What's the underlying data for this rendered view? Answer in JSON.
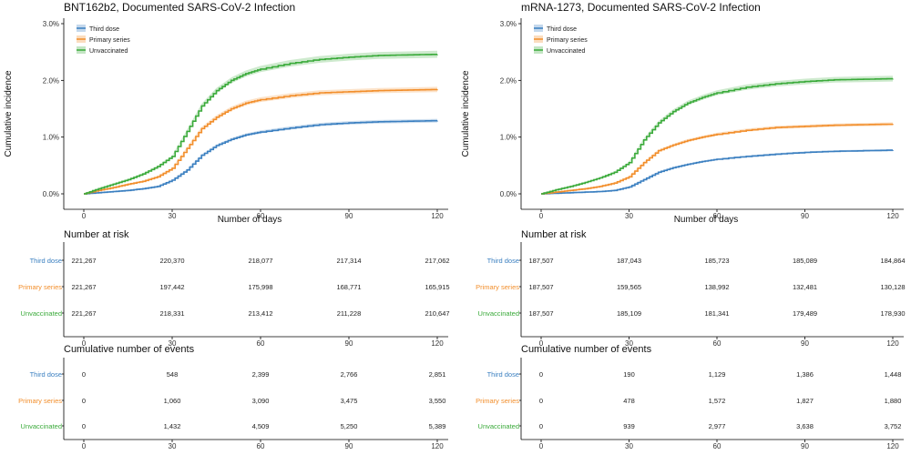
{
  "chart_data": [
    {
      "type": "line",
      "title": "BNT162b2, Documented SARS-CoV-2 Infection",
      "xlabel": "Number of days",
      "ylabel": "Cumulative incidence",
      "xlim": [
        0,
        120
      ],
      "ylim": [
        0,
        3.0
      ],
      "x_ticks": [
        0,
        30,
        60,
        90,
        120
      ],
      "x_tick_labels": [
        "0",
        "30",
        "60",
        "90",
        "120"
      ],
      "y_ticks": [
        0,
        1,
        2,
        3
      ],
      "y_tick_labels": [
        "0.0%",
        "1.0%",
        "2.0%",
        "3.0%"
      ],
      "legend_position": "top-left",
      "x": [
        0,
        5,
        10,
        15,
        20,
        25,
        30,
        35,
        40,
        45,
        50,
        55,
        60,
        70,
        80,
        90,
        100,
        110,
        120
      ],
      "series": [
        {
          "name": "Third dose",
          "color": "#3a7fc0",
          "values": [
            0,
            0.02,
            0.04,
            0.06,
            0.09,
            0.13,
            0.24,
            0.42,
            0.68,
            0.85,
            0.96,
            1.04,
            1.09,
            1.16,
            1.22,
            1.25,
            1.27,
            1.28,
            1.29
          ]
        },
        {
          "name": "Primary series",
          "color": "#f28e2b",
          "values": [
            0,
            0.06,
            0.11,
            0.17,
            0.22,
            0.3,
            0.45,
            0.8,
            1.15,
            1.35,
            1.5,
            1.6,
            1.66,
            1.73,
            1.78,
            1.8,
            1.82,
            1.83,
            1.84
          ]
        },
        {
          "name": "Unvaccinated",
          "color": "#3aaa3a",
          "values": [
            0,
            0.09,
            0.17,
            0.25,
            0.35,
            0.48,
            0.66,
            1.1,
            1.55,
            1.82,
            2.0,
            2.12,
            2.2,
            2.3,
            2.37,
            2.41,
            2.44,
            2.45,
            2.46
          ]
        }
      ],
      "number_at_risk": {
        "title": "Number at risk",
        "rows": [
          {
            "label": "Third dose",
            "color": "#3a7fc0",
            "values": [
              "221,267",
              "220,370",
              "218,077",
              "217,314",
              "217,062"
            ]
          },
          {
            "label": "Primary series",
            "color": "#f28e2b",
            "values": [
              "221,267",
              "197,442",
              "175,998",
              "168,771",
              "165,915"
            ]
          },
          {
            "label": "Unvaccinated",
            "color": "#3aaa3a",
            "values": [
              "221,267",
              "218,331",
              "213,412",
              "211,228",
              "210,647"
            ]
          }
        ]
      },
      "cumulative_events": {
        "title": "Cumulative number of events",
        "rows": [
          {
            "label": "Third dose",
            "color": "#3a7fc0",
            "values": [
              "0",
              "548",
              "2,399",
              "2,766",
              "2,851"
            ]
          },
          {
            "label": "Primary series",
            "color": "#f28e2b",
            "values": [
              "0",
              "1,060",
              "3,090",
              "3,475",
              "3,550"
            ]
          },
          {
            "label": "Unvaccinated",
            "color": "#3aaa3a",
            "values": [
              "0",
              "1,432",
              "4,509",
              "5,250",
              "5,389"
            ]
          }
        ]
      }
    },
    {
      "type": "line",
      "title": "mRNA-1273, Documented SARS-CoV-2 Infection",
      "xlabel": "Number of days",
      "ylabel": "Cumulative incidence",
      "xlim": [
        0,
        120
      ],
      "ylim": [
        0,
        3.0
      ],
      "x_ticks": [
        0,
        30,
        60,
        90,
        120
      ],
      "x_tick_labels": [
        "0",
        "30",
        "60",
        "90",
        "120"
      ],
      "y_ticks": [
        0,
        1,
        2,
        3
      ],
      "y_tick_labels": [
        "0.0%",
        "1.0%",
        "2.0%",
        "3.0%"
      ],
      "legend_position": "top-left",
      "x": [
        0,
        5,
        10,
        15,
        20,
        25,
        30,
        35,
        40,
        45,
        50,
        55,
        60,
        70,
        80,
        90,
        100,
        110,
        120
      ],
      "series": [
        {
          "name": "Third dose",
          "color": "#3a7fc0",
          "values": [
            0,
            0.01,
            0.02,
            0.03,
            0.04,
            0.06,
            0.12,
            0.25,
            0.38,
            0.46,
            0.52,
            0.57,
            0.61,
            0.66,
            0.7,
            0.73,
            0.75,
            0.76,
            0.77
          ]
        },
        {
          "name": "Primary series",
          "color": "#f28e2b",
          "values": [
            0,
            0.03,
            0.06,
            0.09,
            0.13,
            0.19,
            0.3,
            0.55,
            0.76,
            0.86,
            0.94,
            1.0,
            1.05,
            1.12,
            1.17,
            1.19,
            1.21,
            1.22,
            1.23
          ]
        },
        {
          "name": "Unvaccinated",
          "color": "#3aaa3a",
          "values": [
            0,
            0.07,
            0.13,
            0.2,
            0.28,
            0.38,
            0.55,
            0.95,
            1.25,
            1.45,
            1.6,
            1.7,
            1.78,
            1.88,
            1.94,
            1.98,
            2.01,
            2.02,
            2.03
          ]
        }
      ],
      "number_at_risk": {
        "title": "Number at risk",
        "rows": [
          {
            "label": "Third dose",
            "color": "#3a7fc0",
            "values": [
              "187,507",
              "187,043",
              "185,723",
              "185,089",
              "184,864"
            ]
          },
          {
            "label": "Primary series",
            "color": "#f28e2b",
            "values": [
              "187,507",
              "159,565",
              "138,992",
              "132,481",
              "130,128"
            ]
          },
          {
            "label": "Unvaccinated",
            "color": "#3aaa3a",
            "values": [
              "187,507",
              "185,109",
              "181,341",
              "179,489",
              "178,930"
            ]
          }
        ]
      },
      "cumulative_events": {
        "title": "Cumulative number of events",
        "rows": [
          {
            "label": "Third dose",
            "color": "#3a7fc0",
            "values": [
              "0",
              "190",
              "1,129",
              "1,386",
              "1,448"
            ]
          },
          {
            "label": "Primary series",
            "color": "#f28e2b",
            "values": [
              "0",
              "478",
              "1,572",
              "1,827",
              "1,880"
            ]
          },
          {
            "label": "Unvaccinated",
            "color": "#3aaa3a",
            "values": [
              "0",
              "939",
              "2,977",
              "3,638",
              "3,752"
            ]
          }
        ]
      }
    }
  ]
}
